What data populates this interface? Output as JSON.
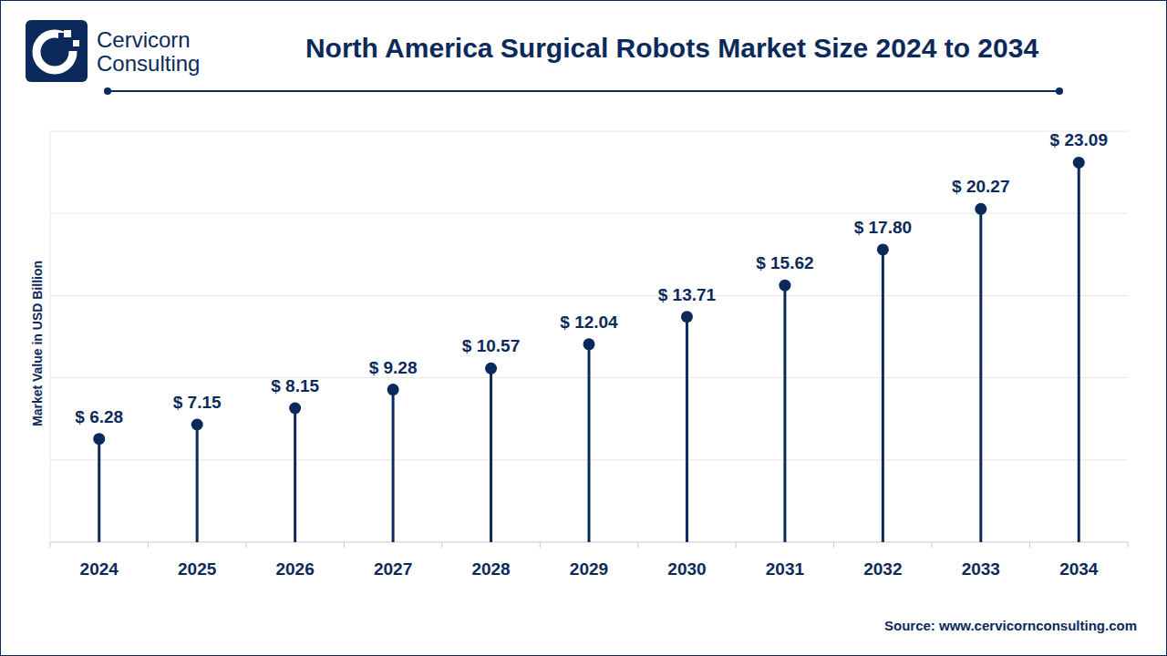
{
  "logo": {
    "lines": [
      "Cervicorn",
      "Consulting"
    ]
  },
  "chart_data": {
    "type": "lollipop",
    "title": "North America Surgical Robots Market Size 2024 to 2034",
    "y_label": "Market Value in USD Billion",
    "source": "Source: www.cervicornconsulting.com",
    "categories": [
      "2024",
      "2025",
      "2026",
      "2027",
      "2028",
      "2029",
      "2030",
      "2031",
      "2032",
      "2033",
      "2034"
    ],
    "values": [
      6.28,
      7.15,
      8.15,
      9.28,
      10.57,
      12.04,
      13.71,
      15.62,
      17.8,
      20.27,
      23.09
    ],
    "value_labels": [
      "$ 6.28",
      "$ 7.15",
      "$ 8.15",
      "$ 9.28",
      "$ 10.57",
      "$ 12.04",
      "$ 13.71",
      "$ 15.62",
      "$ 17.80",
      "$ 20.27",
      "$ 23.09"
    ],
    "color": "#0b2a5b",
    "marker": "circle",
    "ylim": [
      0,
      25
    ],
    "yticks": [
      0,
      5,
      10,
      15,
      20,
      25
    ],
    "grid": true,
    "data_labels": true,
    "tick_labels": "x"
  }
}
